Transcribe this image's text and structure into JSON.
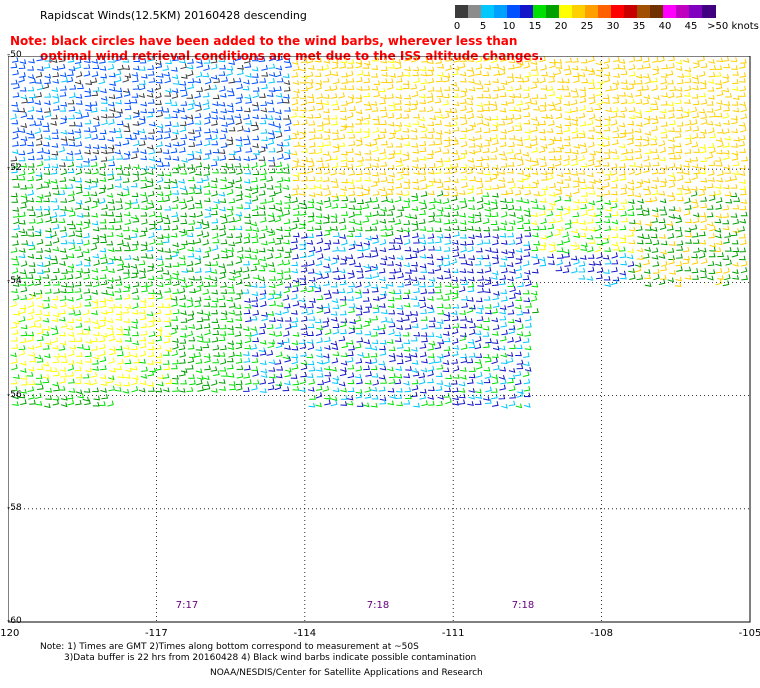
{
  "title": "Rapidscat Winds(12.5KM) 20160428 descending",
  "note": {
    "line1": "Note: black circles have been added to the wind barbs, wherever less than",
    "line2": "optimal wind retrieval conditions are met due to the ISS altitude changes."
  },
  "legend": {
    "labels": [
      "0",
      "5",
      "10",
      "15",
      "20",
      "25",
      "30",
      "35",
      "40",
      "45",
      ">50 knots"
    ],
    "colors": [
      "#3c3c3c",
      "#8c8c8c",
      "#00c8ff",
      "#00a0ff",
      "#0050ff",
      "#1414c8",
      "#00e000",
      "#00a000",
      "#ffff00",
      "#ffd000",
      "#ffa000",
      "#ff6000",
      "#ff0000",
      "#c80000",
      "#a05000",
      "#703000",
      "#ff00ff",
      "#c000c0",
      "#8000c0",
      "#400080"
    ]
  },
  "axes": {
    "lat_labels": [
      "-50",
      "-52",
      "-54",
      "-56",
      "-58",
      "-60"
    ],
    "lon_labels": [
      "-120",
      "-117",
      "-114",
      "-111",
      "-108",
      "-105"
    ],
    "lat_range": [
      -60,
      -50
    ],
    "lon_range": [
      -120,
      -105
    ]
  },
  "pass_times": [
    "7:17",
    "7:18",
    "7:18"
  ],
  "footer": {
    "line1": "Note: 1) Times are GMT 2)Times along bottom correspond to measurement at ~50S",
    "line2": "3)Data buffer is 22 hrs from 20160428 4) Black wind barbs indicate possible contamination",
    "line3": "NOAA/NESDIS/Center for Satellite Applications and Research"
  }
}
